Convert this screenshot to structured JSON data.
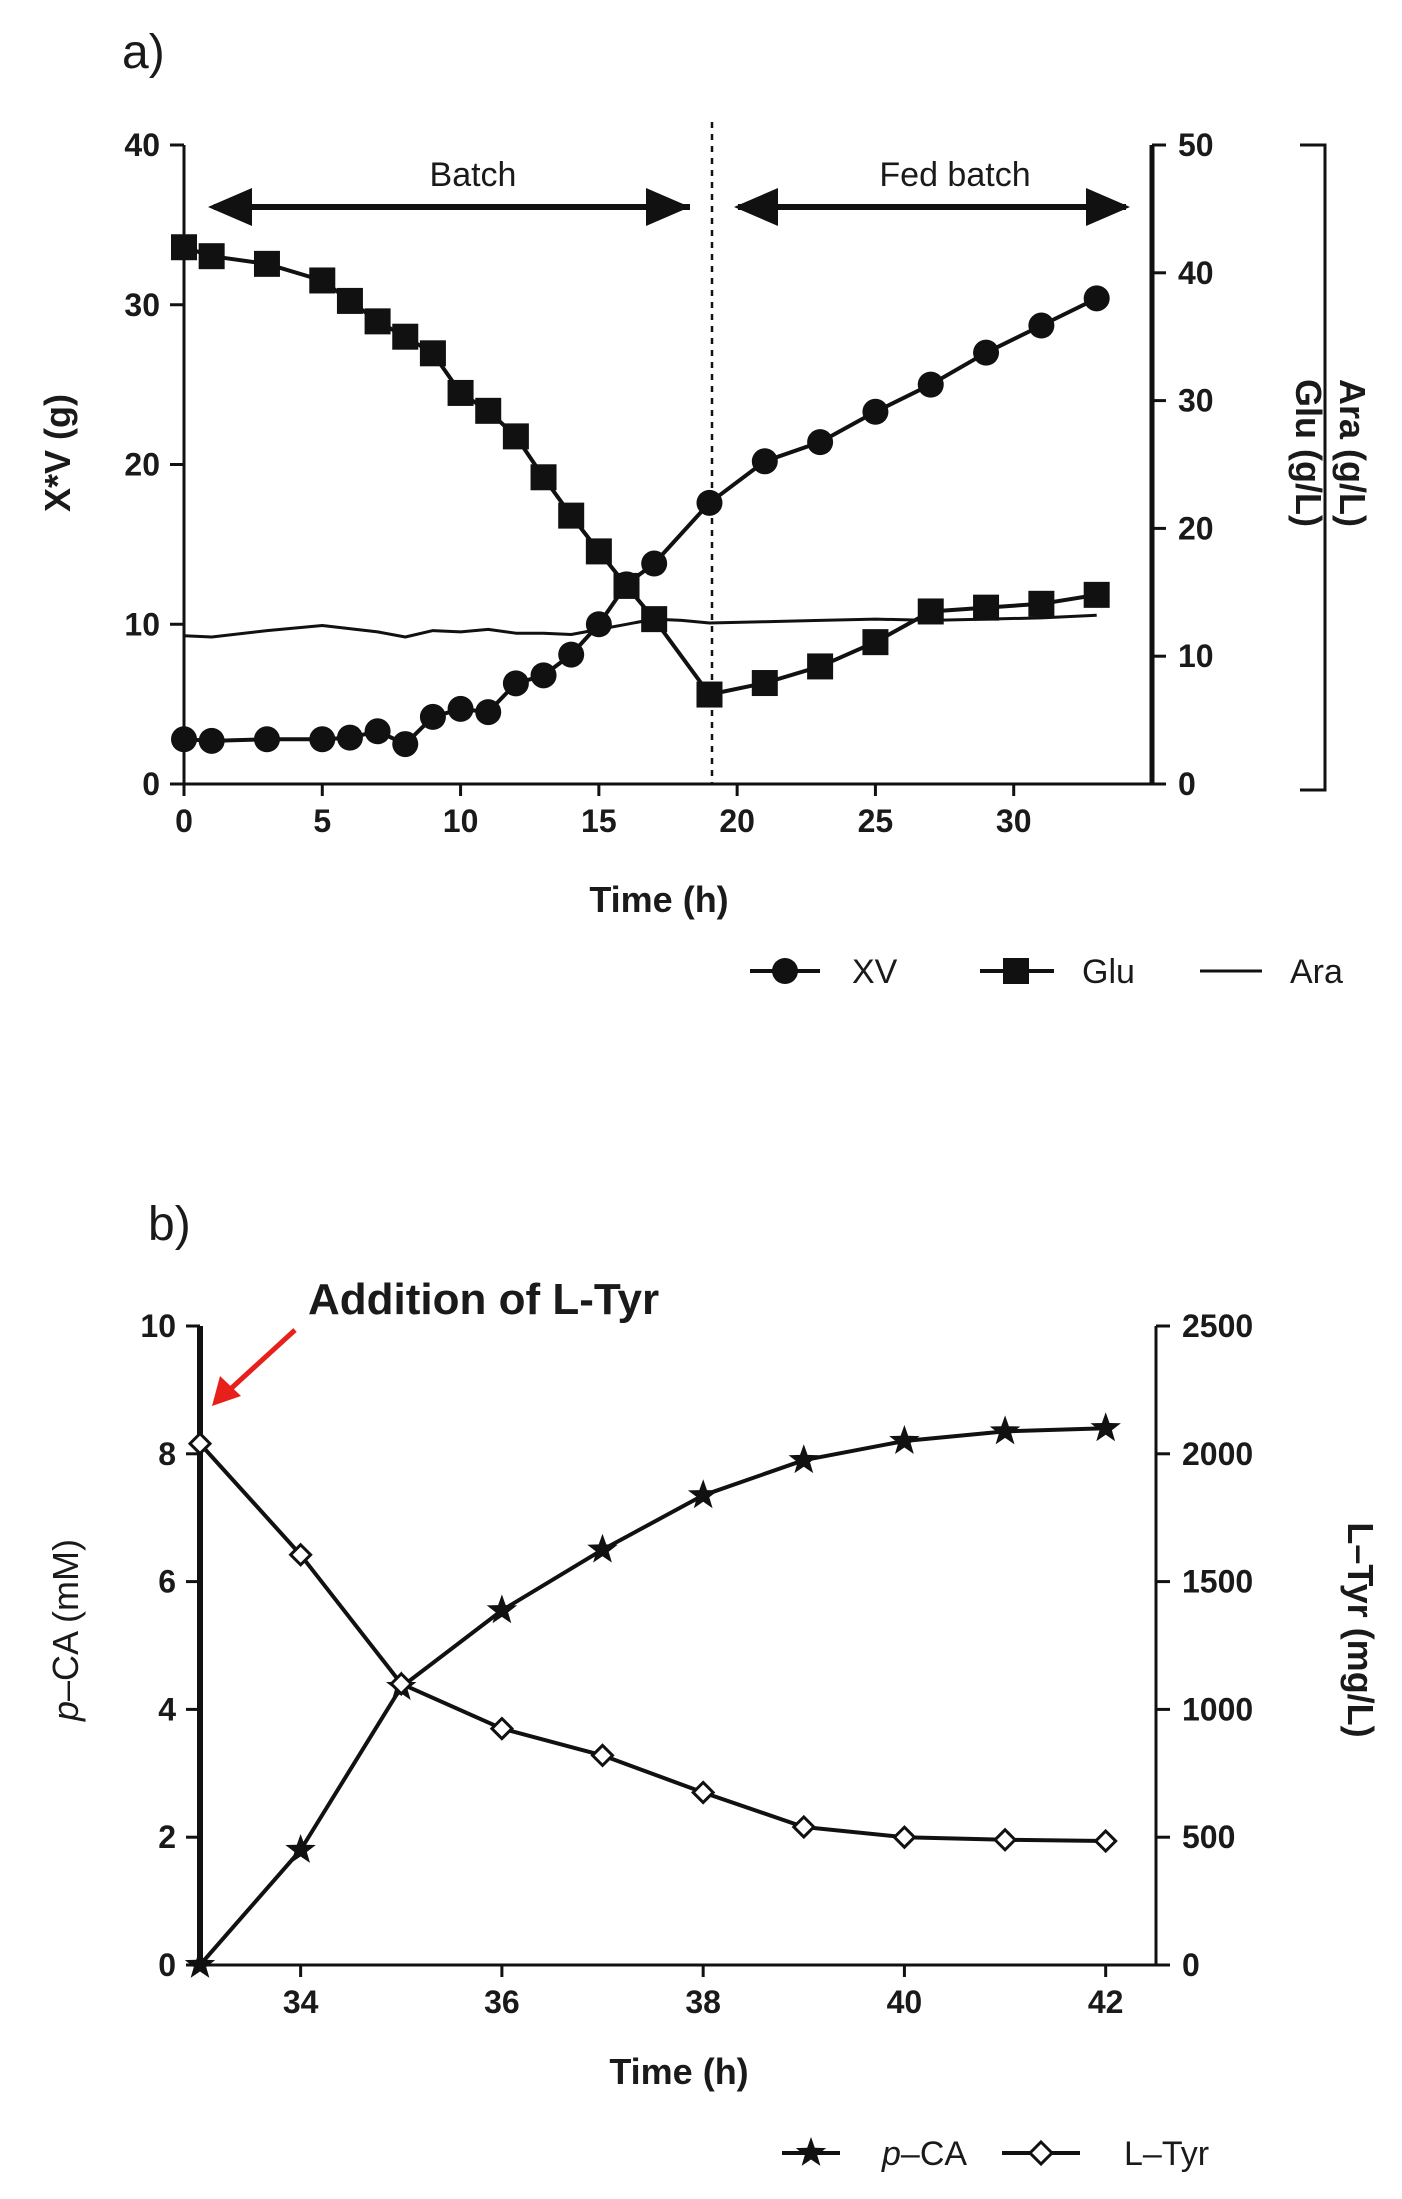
{
  "chart_data": [
    {
      "panel": "a)",
      "type": "line",
      "x": {
        "label": "Time (h)",
        "lim": [
          0,
          35
        ],
        "ticks": [
          0,
          5,
          10,
          15,
          20,
          25,
          30
        ]
      },
      "y_left": {
        "label": "X*V (g)",
        "lim": [
          0,
          40
        ],
        "ticks": [
          0,
          10,
          20,
          30,
          40
        ]
      },
      "y_right": {
        "label": [
          "Ara (g/L)",
          "Glu (g/L)"
        ],
        "lim": [
          0,
          50
        ],
        "ticks": [
          0,
          10,
          20,
          30,
          40,
          50
        ]
      },
      "annotations": [
        {
          "text": "Batch",
          "x_start": 1,
          "x_end": 18
        },
        {
          "text": "Fed batch",
          "x_start": 20,
          "x_end": 34
        }
      ],
      "phase_divider_x": 19,
      "legend": [
        "XV",
        "Glu",
        "Ara"
      ],
      "series": [
        {
          "name": "XV",
          "axis": "left",
          "marker": "circle",
          "x": [
            0,
            1,
            3,
            5,
            6,
            7,
            8,
            9,
            10,
            11,
            12,
            13,
            14,
            15,
            16,
            17,
            19,
            21,
            23,
            25,
            27,
            29,
            31,
            33
          ],
          "y": [
            2.8,
            2.7,
            2.8,
            2.8,
            2.9,
            3.3,
            2.5,
            4.2,
            4.7,
            4.5,
            6.3,
            6.8,
            8.1,
            10.0,
            12.5,
            13.8,
            17.6,
            20.2,
            21.4,
            23.3,
            25.0,
            27.0,
            28.7,
            30.4
          ]
        },
        {
          "name": "Glu",
          "axis": "right",
          "marker": "square",
          "x": [
            0,
            1,
            3,
            5,
            6,
            7,
            8,
            9,
            10,
            11,
            12,
            13,
            14,
            15,
            16,
            17,
            19,
            21,
            23,
            25,
            27,
            29,
            31,
            33
          ],
          "y": [
            42.0,
            41.3,
            40.7,
            39.4,
            37.8,
            36.2,
            35.0,
            33.7,
            30.6,
            29.2,
            27.2,
            24.0,
            21.0,
            18.2,
            15.5,
            12.9,
            7.0,
            7.9,
            9.2,
            11.1,
            13.5,
            13.8,
            14.1,
            14.8
          ]
        },
        {
          "name": "Ara",
          "axis": "right",
          "marker": "none",
          "x": [
            0,
            1,
            3,
            5,
            7,
            8,
            9,
            10,
            11,
            12,
            13,
            14,
            15,
            16,
            17,
            18,
            19,
            21,
            23,
            25,
            27,
            29,
            31,
            33
          ],
          "y": [
            11.6,
            11.5,
            12.0,
            12.4,
            11.9,
            11.5,
            12.0,
            11.9,
            12.1,
            11.8,
            11.8,
            11.7,
            12.1,
            12.5,
            12.9,
            12.8,
            12.6,
            12.7,
            12.8,
            12.9,
            12.8,
            12.9,
            13.0,
            13.2
          ]
        }
      ]
    },
    {
      "panel": "b)",
      "type": "line",
      "x": {
        "label": "Time (h)",
        "lim": [
          33,
          42.5
        ],
        "ticks": [
          34,
          36,
          38,
          40,
          42
        ]
      },
      "y_left": {
        "label": "p-CA (mM)",
        "label_prefix": "p",
        "label_rest": "–CA (mM)",
        "lim": [
          0,
          10
        ],
        "ticks": [
          0,
          2,
          4,
          6,
          8,
          10
        ]
      },
      "y_right": {
        "label": "L–Tyr (mg/L)",
        "lim": [
          0,
          2500
        ],
        "ticks": [
          0,
          500,
          1000,
          1500,
          2000,
          2500
        ]
      },
      "annotation": {
        "text": "Addition of L-Tyr",
        "color": "#e8201c"
      },
      "legend": [
        "p-CA",
        "L-Tyr"
      ],
      "legend_display": [
        {
          "prefix": "p",
          "rest": "–CA"
        },
        {
          "prefix": "",
          "rest": "L–Tyr"
        }
      ],
      "series": [
        {
          "name": "p-CA",
          "axis": "left",
          "marker": "star",
          "x": [
            33,
            34,
            35,
            36,
            37,
            38,
            39,
            40,
            41,
            42
          ],
          "y": [
            0.0,
            1.8,
            4.35,
            5.55,
            6.5,
            7.35,
            7.9,
            8.2,
            8.35,
            8.4
          ]
        },
        {
          "name": "L-Tyr",
          "axis": "right",
          "marker": "diamond",
          "x": [
            33,
            34,
            35,
            36,
            37,
            38,
            39,
            40,
            41,
            42
          ],
          "y": [
            2040,
            1605,
            1100,
            925,
            820,
            675,
            540,
            500,
            490,
            485
          ]
        }
      ]
    }
  ]
}
